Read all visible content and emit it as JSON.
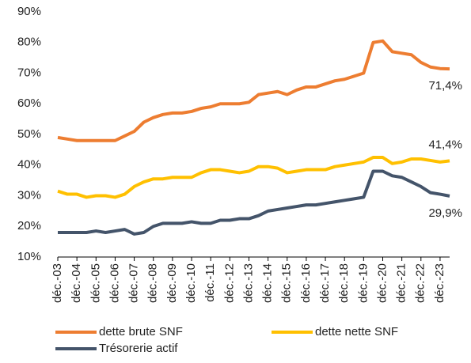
{
  "chart_data": {
    "type": "line",
    "categories": [
      "déc.-03",
      null,
      "déc.-04",
      null,
      "déc.-05",
      null,
      "déc.-06",
      null,
      "déc.-07",
      null,
      "déc.-08",
      null,
      "déc.-09",
      null,
      "déc.-10",
      null,
      "déc.-11",
      null,
      "déc.-12",
      null,
      "déc.-13",
      null,
      "déc.-14",
      null,
      "déc.-15",
      null,
      "déc.-16",
      null,
      "déc.-17",
      null,
      "déc.-18",
      null,
      "déc.-19",
      null,
      "déc.-20",
      null,
      "déc.-21",
      null,
      "déc.-22",
      null,
      "déc.-23",
      null
    ],
    "series": [
      {
        "name": "dette brute SNF",
        "color": "#ed7d31",
        "end_label": "71,4%",
        "values": [
          49,
          48.5,
          48,
          48,
          48,
          48,
          48,
          49.5,
          51,
          54,
          55.5,
          56.5,
          57,
          57,
          57.5,
          58.5,
          59,
          60,
          60,
          60,
          60.5,
          63,
          63.5,
          64,
          63,
          64.5,
          65.5,
          65.5,
          66.5,
          67.5,
          68,
          69,
          70,
          80,
          80.5,
          77,
          76.5,
          76,
          73.5,
          72,
          71.5,
          71.4
        ]
      },
      {
        "name": "dette nette SNF",
        "color": "#ffc000",
        "end_label": "41,4%",
        "values": [
          31.5,
          30.5,
          30.5,
          29.5,
          30,
          30,
          29.5,
          30.5,
          33,
          34.5,
          35.5,
          35.5,
          36,
          36,
          36,
          37.5,
          38.5,
          38.5,
          38,
          37.5,
          38,
          39.5,
          39.5,
          39,
          37.5,
          38,
          38.5,
          38.5,
          38.5,
          39.5,
          40,
          40.5,
          41,
          42.5,
          42.5,
          40.5,
          41,
          42,
          42,
          41.5,
          41,
          41.4
        ]
      },
      {
        "name": "Trésorerie actif",
        "color": "#44546a",
        "end_label": "29,9%",
        "values": [
          18,
          18,
          18,
          18,
          18.5,
          18,
          18.5,
          19,
          17.5,
          18,
          20,
          21,
          21,
          21,
          21.5,
          21,
          21,
          22,
          22,
          22.5,
          22.5,
          23.5,
          25,
          25.5,
          26,
          26.5,
          27,
          27,
          27.5,
          28,
          28.5,
          29,
          29.5,
          38,
          38,
          36.5,
          36,
          34.5,
          33,
          31,
          30.5,
          29.9
        ]
      }
    ],
    "ylim": [
      10,
      90
    ],
    "yticks": [
      {
        "value": 10,
        "label": "10%"
      },
      {
        "value": 20,
        "label": "20%"
      },
      {
        "value": 30,
        "label": "30%"
      },
      {
        "value": 40,
        "label": "40%"
      },
      {
        "value": 50,
        "label": "50%"
      },
      {
        "value": 60,
        "label": "60%"
      },
      {
        "value": 70,
        "label": "70%"
      },
      {
        "value": 80,
        "label": "80%"
      },
      {
        "value": 90,
        "label": "90%"
      }
    ],
    "grid": false
  }
}
